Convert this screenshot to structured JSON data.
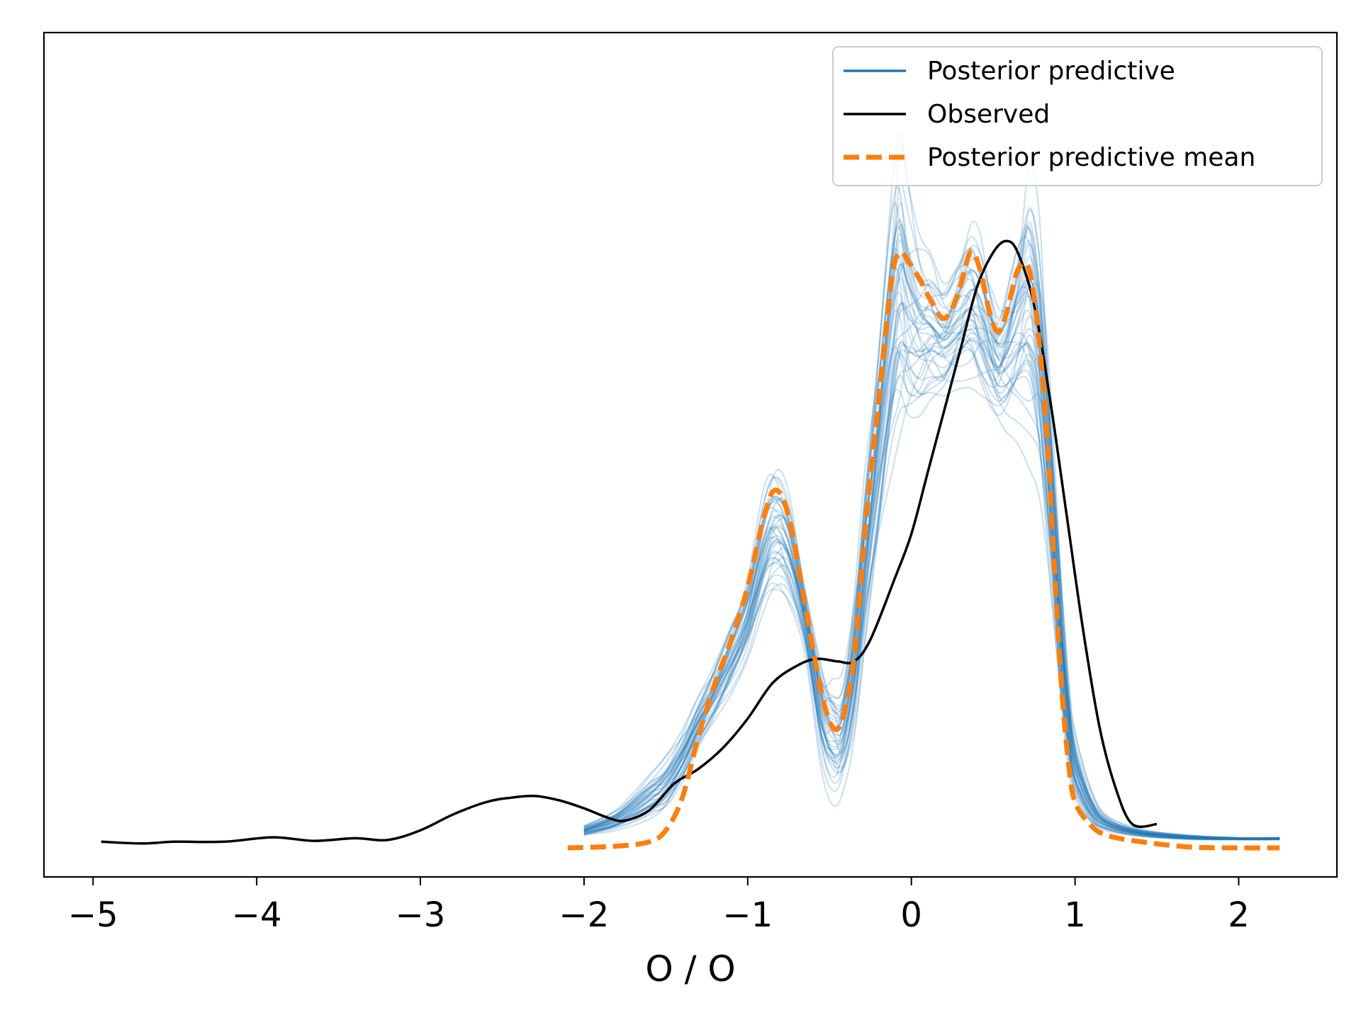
{
  "chart_data": {
    "type": "line",
    "xlabel": "O / O",
    "ylabel": "",
    "xlim": [
      -5.3,
      2.6
    ],
    "ylim": [
      -0.04,
      0.92
    ],
    "xticks": [
      -5,
      -4,
      -3,
      -2,
      -1,
      0,
      1,
      2
    ],
    "xtick_labels": [
      "−5",
      "−4",
      "−3",
      "−2",
      "−1",
      "0",
      "1",
      "2"
    ],
    "yticks_visible": false,
    "grid": false,
    "legend": {
      "placement": "top-right",
      "entries": [
        {
          "label": "Posterior predictive",
          "color": "#1f77b4",
          "style": "solid"
        },
        {
          "label": "Observed",
          "color": "#000000",
          "style": "solid"
        },
        {
          "label": "Posterior predictive mean",
          "color": "#ff7f0e",
          "style": "dashed"
        }
      ]
    },
    "series": [
      {
        "name": "Observed",
        "color": "#000000",
        "x": [
          -4.95,
          -4.7,
          -4.5,
          -4.2,
          -3.9,
          -3.65,
          -3.4,
          -3.2,
          -3.0,
          -2.8,
          -2.6,
          -2.45,
          -2.3,
          -2.15,
          -2.0,
          -1.85,
          -1.75,
          -1.6,
          -1.45,
          -1.3,
          -1.15,
          -1.0,
          -0.85,
          -0.7,
          -0.58,
          -0.45,
          -0.35,
          -0.25,
          -0.1,
          0.0,
          0.1,
          0.2,
          0.3,
          0.4,
          0.5,
          0.58,
          0.65,
          0.75,
          0.85,
          0.95,
          1.05,
          1.15,
          1.25,
          1.35,
          1.5
        ],
        "y": [
          0.0,
          -0.002,
          0.0,
          0.0,
          0.005,
          0.001,
          0.004,
          0.002,
          0.013,
          0.031,
          0.045,
          0.05,
          0.052,
          0.047,
          0.038,
          0.027,
          0.024,
          0.036,
          0.066,
          0.083,
          0.107,
          0.14,
          0.18,
          0.2,
          0.208,
          0.205,
          0.205,
          0.23,
          0.3,
          0.35,
          0.42,
          0.49,
          0.56,
          0.63,
          0.67,
          0.683,
          0.67,
          0.61,
          0.5,
          0.37,
          0.24,
          0.13,
          0.06,
          0.02,
          0.02
        ]
      },
      {
        "name": "Posterior predictive mean",
        "color": "#ff7f0e",
        "x": [
          -2.1,
          -1.8,
          -1.6,
          -1.5,
          -1.4,
          -1.3,
          -1.2,
          -1.1,
          -1.0,
          -0.9,
          -0.83,
          -0.75,
          -0.65,
          -0.55,
          -0.48,
          -0.42,
          -0.35,
          -0.28,
          -0.2,
          -0.12,
          -0.07,
          -0.02,
          0.05,
          0.12,
          0.2,
          0.28,
          0.36,
          0.42,
          0.48,
          0.53,
          0.58,
          0.65,
          0.72,
          0.78,
          0.83,
          0.88,
          0.92,
          0.96,
          1.0,
          1.1,
          1.2,
          1.4,
          1.7,
          2.0,
          2.25
        ],
        "y": [
          -0.007,
          -0.005,
          0.0,
          0.013,
          0.05,
          0.12,
          0.18,
          0.23,
          0.29,
          0.37,
          0.4,
          0.37,
          0.27,
          0.17,
          0.13,
          0.14,
          0.21,
          0.36,
          0.5,
          0.64,
          0.67,
          0.66,
          0.64,
          0.615,
          0.595,
          0.62,
          0.67,
          0.65,
          0.6,
          0.58,
          0.6,
          0.65,
          0.65,
          0.57,
          0.46,
          0.29,
          0.17,
          0.09,
          0.045,
          0.018,
          0.007,
          0.0,
          -0.006,
          -0.007,
          -0.007
        ]
      }
    ],
    "posterior_predictive_draws": {
      "name": "Posterior predictive",
      "color": "#1f77b4",
      "count": 40,
      "x": [
        -2.0,
        -1.8,
        -1.6,
        -1.5,
        -1.4,
        -1.3,
        -1.2,
        -1.1,
        -1.0,
        -0.9,
        -0.83,
        -0.75,
        -0.65,
        -0.55,
        -0.48,
        -0.42,
        -0.35,
        -0.28,
        -0.2,
        -0.12,
        -0.07,
        -0.02,
        0.05,
        0.12,
        0.2,
        0.28,
        0.36,
        0.42,
        0.48,
        0.53,
        0.58,
        0.65,
        0.72,
        0.78,
        0.83,
        0.88,
        0.92,
        0.96,
        1.0,
        1.1,
        1.2,
        1.4,
        1.7,
        2.0,
        2.25
      ],
      "envelope_low": [
        0.005,
        0.01,
        0.02,
        0.03,
        0.06,
        0.1,
        0.13,
        0.16,
        0.2,
        0.25,
        0.27,
        0.26,
        0.21,
        0.08,
        0.04,
        0.05,
        0.1,
        0.2,
        0.3,
        0.38,
        0.42,
        0.44,
        0.46,
        0.48,
        0.49,
        0.5,
        0.5,
        0.49,
        0.48,
        0.47,
        0.46,
        0.45,
        0.42,
        0.38,
        0.3,
        0.2,
        0.12,
        0.07,
        0.04,
        0.015,
        0.01,
        0.005,
        0.002,
        0.002,
        0.002
      ],
      "envelope_high": [
        0.02,
        0.04,
        0.08,
        0.1,
        0.13,
        0.17,
        0.21,
        0.26,
        0.31,
        0.41,
        0.44,
        0.41,
        0.3,
        0.22,
        0.2,
        0.2,
        0.3,
        0.45,
        0.6,
        0.78,
        0.83,
        0.76,
        0.7,
        0.68,
        0.65,
        0.68,
        0.72,
        0.7,
        0.65,
        0.62,
        0.65,
        0.72,
        0.8,
        0.73,
        0.6,
        0.44,
        0.31,
        0.2,
        0.13,
        0.06,
        0.03,
        0.015,
        0.008,
        0.005,
        0.005
      ]
    }
  }
}
